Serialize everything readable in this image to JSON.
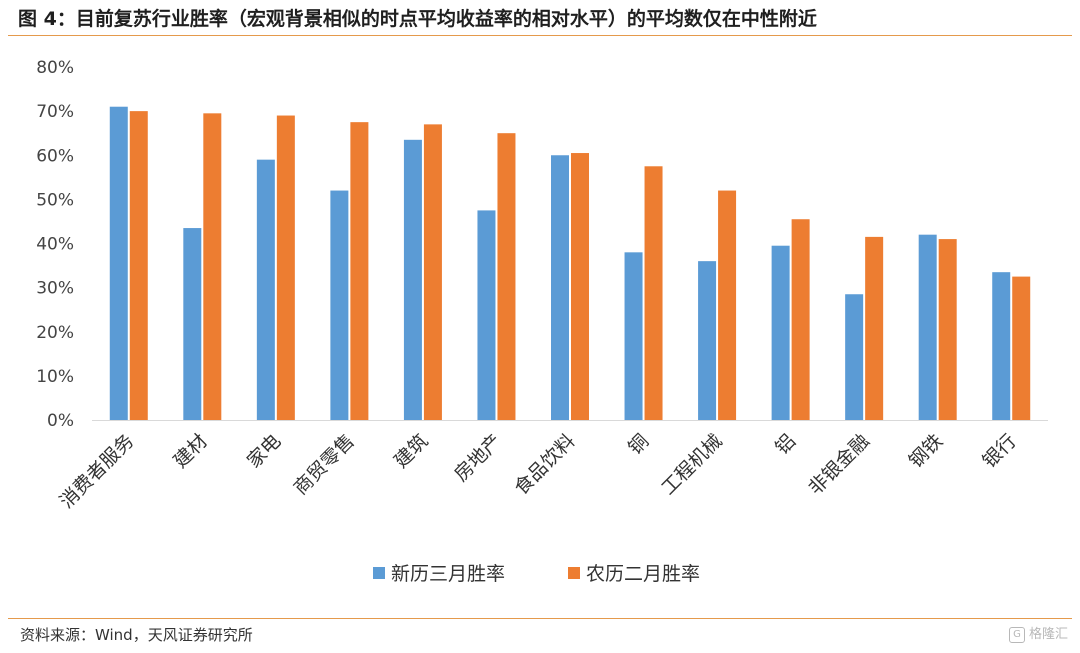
{
  "title": "图 4：目前复苏行业胜率（宏观背景相似的时点平均收益率的相对水平）的平均数仅在中性附近",
  "source": "资料来源：Wind，天风证券研究所",
  "watermark": "格隆汇",
  "chart_data": {
    "type": "bar",
    "title": "",
    "xlabel": "",
    "ylabel": "",
    "categories": [
      "消费者服务",
      "建材",
      "家电",
      "商贸零售",
      "建筑",
      "房地产",
      "食品饮料",
      "铜",
      "工程机械",
      "铝",
      "非银金融",
      "钢铁",
      "银行"
    ],
    "series": [
      {
        "name": "新历三月胜率",
        "color": "#5b9bd5",
        "values": [
          0.71,
          0.435,
          0.59,
          0.52,
          0.635,
          0.475,
          0.6,
          0.38,
          0.36,
          0.395,
          0.285,
          0.42,
          0.335
        ]
      },
      {
        "name": "农历二月胜率",
        "color": "#ed7d31",
        "values": [
          0.7,
          0.695,
          0.69,
          0.675,
          0.67,
          0.65,
          0.605,
          0.575,
          0.52,
          0.455,
          0.415,
          0.41,
          0.325
        ]
      }
    ],
    "ylim": [
      0,
      0.8
    ],
    "yticks": [
      "0%",
      "10%",
      "20%",
      "30%",
      "40%",
      "50%",
      "60%",
      "70%",
      "80%"
    ],
    "grid": false,
    "legend_position": "bottom"
  }
}
